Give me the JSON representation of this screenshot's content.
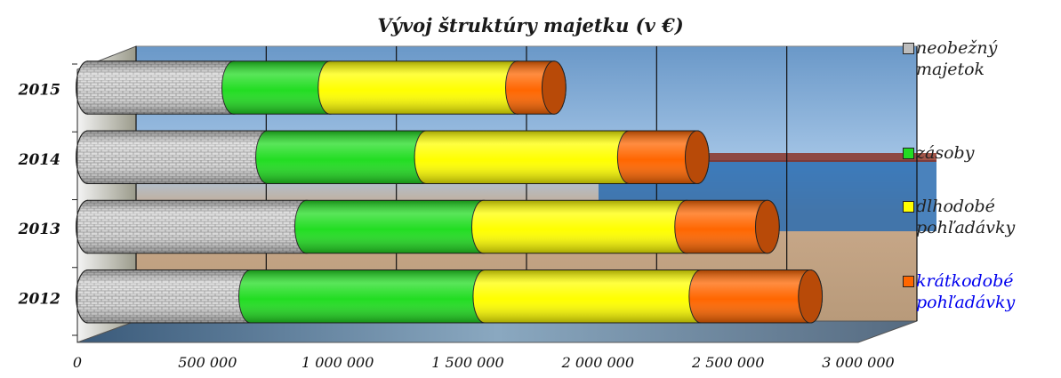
{
  "chart_data": {
    "type": "bar",
    "orientation": "horizontal",
    "stacked": true,
    "style": "3d-cylinder",
    "title": "Vývoj štruktúry majetku (v €)",
    "categories": [
      "2012",
      "2013",
      "2014",
      "2015"
    ],
    "series": [
      {
        "name": "neobežný majetok",
        "values": [
          625000,
          840000,
          690000,
          560000
        ],
        "color": "#c8c8c8",
        "pattern": "brick"
      },
      {
        "name": "zásoby",
        "values": [
          900000,
          680000,
          610000,
          370000
        ],
        "color": "#22dd22"
      },
      {
        "name": "dlhodobé pohľadávky",
        "values": [
          830000,
          780000,
          780000,
          720000
        ],
        "color": "#ffff00"
      },
      {
        "name": "krátkodobé pohľadávky",
        "values": [
          420000,
          310000,
          260000,
          140000
        ],
        "color": "#ff6600"
      }
    ],
    "xlim": [
      0,
      3000000
    ],
    "xticks": [
      0,
      500000,
      1000000,
      1500000,
      2000000,
      2500000,
      3000000
    ],
    "xtick_labels": [
      "0",
      "500 000",
      "1 000 000",
      "1 500 000",
      "2 000 000",
      "2 500 000",
      "3 000 000"
    ],
    "grid": true,
    "legend_position": "right",
    "legend_label_colors": [
      "#222222",
      "#222222",
      "#222222",
      "#0000ee"
    ]
  }
}
